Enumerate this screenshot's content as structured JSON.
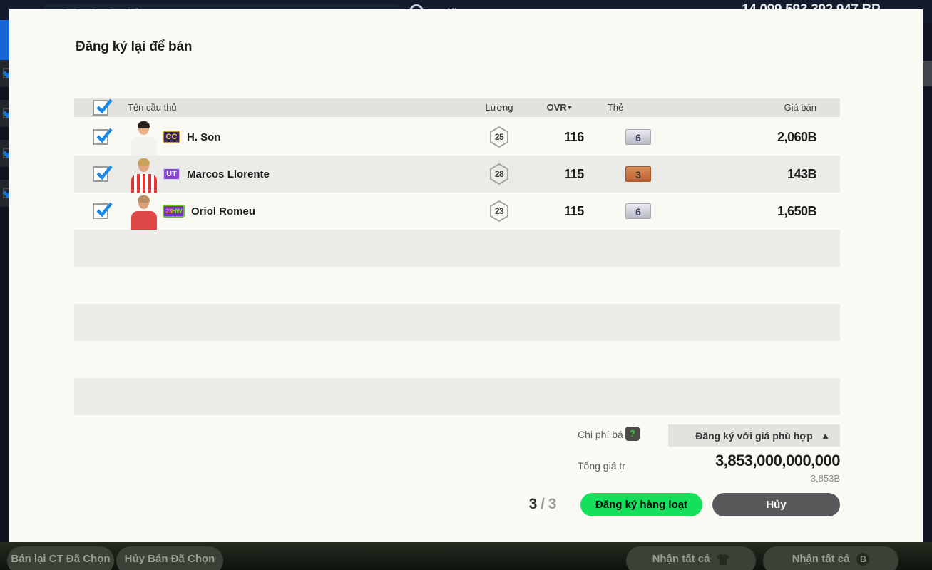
{
  "colors": {
    "check_blue": "#1e88e5",
    "register_green": "#15e05c",
    "cancel_dark": "#58585a",
    "modal_bg": "#fafaf4",
    "header_gray": "#e2e2de",
    "row_alt_gray": "#ebebe7"
  },
  "background": {
    "top_bar": {
      "search_placeholder": "Nhập tên cầu thủ",
      "label_fragment": "Nh",
      "bp_balance": "14,099,593,392,947 BP"
    },
    "bottom_buttons": [
      {
        "label": "Bán lại CT Đã Chọn"
      },
      {
        "label": "Hủy Bán Đã Chọn"
      },
      {
        "label": "Nhận tất cả",
        "icon": "player-shirt"
      },
      {
        "label": "Nhận tất cả",
        "icon": "bp-coin"
      }
    ]
  },
  "modal": {
    "title": "Đăng ký lại để bán",
    "table": {
      "headers": {
        "name": "Tên cầu thủ",
        "salary": "Lương",
        "ovr": "OVR",
        "sort_icon": "▼",
        "cards": "Thẻ",
        "price": "Giá bán"
      },
      "rows": [
        {
          "name": "H. Son",
          "badge": {
            "bg": "#35295a",
            "border": "#c09a3e",
            "parts": [
              {
                "text": "CC",
                "color": "#ecc75a"
              }
            ]
          },
          "salary": "25",
          "ovr": "116",
          "cards": "6",
          "tier": "silver",
          "price": "2,060B",
          "avatar": {
            "hair": "#26201e",
            "skin": "#e9b286",
            "jersey": "#f2f2ee",
            "jersey2": "#f2f2ee",
            "stripes": false
          }
        },
        {
          "name": "Marcos Llorente",
          "badge": {
            "bg": "#8a46d4",
            "border": "#d9d5ea",
            "parts": [
              {
                "text": "UT",
                "color": "#ffffff"
              }
            ]
          },
          "salary": "28",
          "ovr": "115",
          "cards": "3",
          "tier": "bronze",
          "price": "143B",
          "avatar": {
            "hair": "#caa35c",
            "skin": "#e2a37f",
            "jersey": "#e03838",
            "jersey2": "#ffffff",
            "stripes": true
          }
        },
        {
          "name": "Oriol Romeu",
          "badge": {
            "bg": "#7c2ecc",
            "border": "#5fc51e",
            "parts": [
              {
                "text": "23",
                "color": "#f29b2a"
              },
              {
                "text": "HW",
                "color": "#72df2d"
              }
            ]
          },
          "salary": "23",
          "ovr": "115",
          "cards": "6",
          "tier": "silver",
          "price": "1,650B",
          "avatar": {
            "hair": "#b98f62",
            "skin": "#d9a27c",
            "jersey": "#e04848",
            "jersey2": "#e04848",
            "stripes": false
          }
        }
      ],
      "empty_row_count": 5
    },
    "summary": {
      "fee_label": "Chi phí bá",
      "help_icon": "?",
      "price_mode_dropdown": "Đăng ký với giá phù hợp",
      "dropdown_chevron": "▲",
      "total_label": "Tổng giá tr",
      "total_value": "3,853,000,000,000",
      "total_short": "3,853B",
      "counter_current": "3",
      "counter_rest": "/ 3"
    },
    "actions": {
      "register": "Đăng ký hàng loạt",
      "cancel": "Hủy"
    }
  }
}
